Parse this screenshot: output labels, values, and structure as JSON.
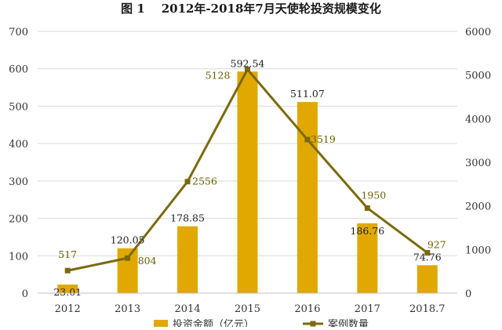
{
  "chart_data": {
    "type": "bar",
    "title": "图 1    2012年-2018年7月天使轮投资规模变化",
    "categories": [
      "2012",
      "2013",
      "2014",
      "2015",
      "2016",
      "2017",
      "2018.7"
    ],
    "series": [
      {
        "name": "投资金额（亿元）",
        "type": "bar",
        "axis": "left",
        "color": "#E0A800",
        "values": [
          23.01,
          120.05,
          178.85,
          592.54,
          511.07,
          186.76,
          74.76
        ],
        "labels": [
          "23.01",
          "120.05",
          "178.85",
          "592.54",
          "511.07",
          "186.76",
          "74.76"
        ]
      },
      {
        "name": "案例数量",
        "type": "line",
        "axis": "right",
        "color": "#7A6A0C",
        "values": [
          517,
          804,
          2556,
          5128,
          3519,
          1950,
          927
        ],
        "labels": [
          "517",
          "804",
          "2556",
          "5128",
          "3519",
          "1950",
          "927"
        ]
      }
    ],
    "y_left": {
      "min": 0,
      "max": 700,
      "ticks": [
        "0",
        "100",
        "200",
        "300",
        "400",
        "500",
        "600",
        "700"
      ]
    },
    "y_right": {
      "min": 0,
      "max": 6000,
      "ticks": [
        "0",
        "1000",
        "2000",
        "3000",
        "4000",
        "5000",
        "6000"
      ]
    },
    "grid": true,
    "legend_position": "bottom"
  }
}
